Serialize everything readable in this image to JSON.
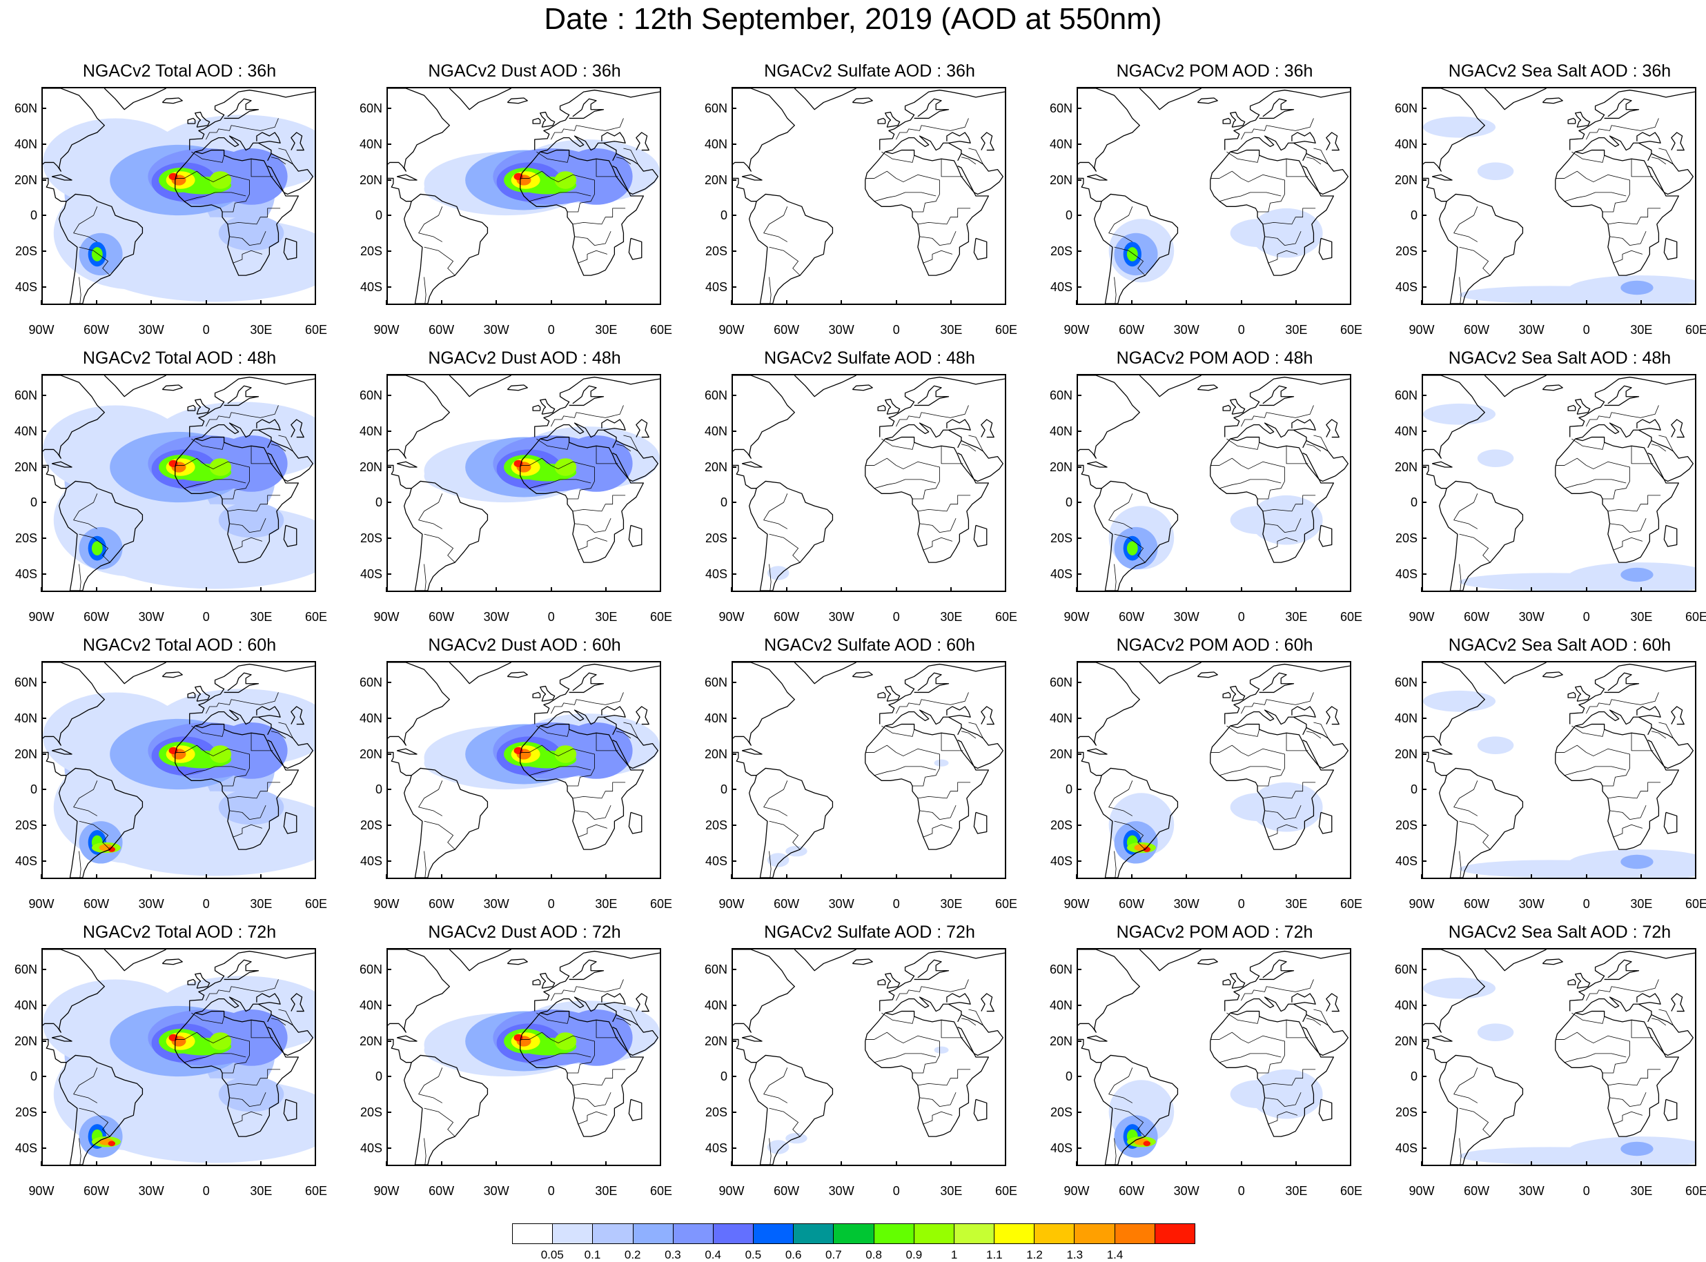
{
  "title": "Date : 12th September, 2019 (AOD at 550nm)",
  "ylabels": [
    "60N",
    "40N",
    "20N",
    "0",
    "20S",
    "40S"
  ],
  "xlabels": [
    "90W",
    "60W",
    "30W",
    "0",
    "30E",
    "60E"
  ],
  "panels": [
    {
      "title": "NGACv2 Total AOD : 36h",
      "species": "total",
      "hour": 36
    },
    {
      "title": "NGACv2 Dust AOD : 36h",
      "species": "dust",
      "hour": 36
    },
    {
      "title": "NGACv2 Sulfate AOD : 36h",
      "species": "sulfate",
      "hour": 36
    },
    {
      "title": "NGACv2 POM AOD : 36h",
      "species": "pom",
      "hour": 36
    },
    {
      "title": "NGACv2 Sea Salt AOD : 36h",
      "species": "seasalt",
      "hour": 36
    },
    {
      "title": "NGACv2 Total AOD : 48h",
      "species": "total",
      "hour": 48
    },
    {
      "title": "NGACv2 Dust AOD : 48h",
      "species": "dust",
      "hour": 48
    },
    {
      "title": "NGACv2 Sulfate AOD : 48h",
      "species": "sulfate",
      "hour": 48
    },
    {
      "title": "NGACv2 POM AOD : 48h",
      "species": "pom",
      "hour": 48
    },
    {
      "title": "NGACv2 Sea Salt AOD : 48h",
      "species": "seasalt",
      "hour": 48
    },
    {
      "title": "NGACv2 Total AOD : 60h",
      "species": "total",
      "hour": 60
    },
    {
      "title": "NGACv2 Dust AOD : 60h",
      "species": "dust",
      "hour": 60
    },
    {
      "title": "NGACv2 Sulfate AOD : 60h",
      "species": "sulfate",
      "hour": 60
    },
    {
      "title": "NGACv2 POM AOD : 60h",
      "species": "pom",
      "hour": 60
    },
    {
      "title": "NGACv2 Sea Salt AOD : 60h",
      "species": "seasalt",
      "hour": 60
    },
    {
      "title": "NGACv2 Total AOD : 72h",
      "species": "total",
      "hour": 72
    },
    {
      "title": "NGACv2 Dust AOD : 72h",
      "species": "dust",
      "hour": 72
    },
    {
      "title": "NGACv2 Sulfate AOD : 72h",
      "species": "sulfate",
      "hour": 72
    },
    {
      "title": "NGACv2 POM AOD : 72h",
      "species": "pom",
      "hour": 72
    },
    {
      "title": "NGACv2 Sea Salt  AOD : 72h",
      "species": "seasalt",
      "hour": 72
    }
  ],
  "colorbar": {
    "labels": [
      "0.05",
      "0.1",
      "0.2",
      "0.3",
      "0.4",
      "0.5",
      "0.6",
      "0.7",
      "0.8",
      "0.9",
      "1",
      "1.1",
      "1.2",
      "1.3",
      "1.4"
    ],
    "colors": [
      "#ffffff",
      "#d6e2ff",
      "#b5c9ff",
      "#8fb0ff",
      "#7f96ff",
      "#6370ff",
      "#0063ff",
      "#009696",
      "#00c633",
      "#63ff00",
      "#96ff00",
      "#c6ff33",
      "#ffff00",
      "#ffc600",
      "#ffa000",
      "#ff7c00",
      "#ff1900"
    ]
  },
  "map_extent": {
    "lon": [
      -90,
      60
    ],
    "lat": [
      -50,
      72
    ]
  }
}
